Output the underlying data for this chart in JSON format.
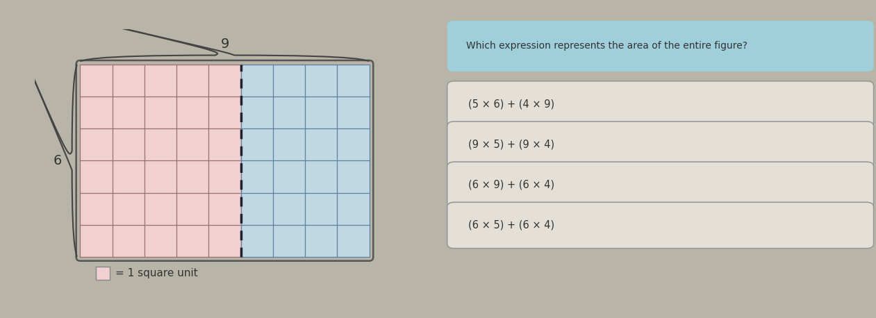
{
  "bg_color": "#b8b4a8",
  "question_header_bg": "#9ecfdb",
  "question_text": "Which expression represents the area of the entire figure?",
  "answer_choices": [
    "(5 × 6) + (4 × 9)",
    "(9 × 5) + (9 × 4)",
    "(6 × 9) + (6 × 4)",
    "(6 × 5) + (6 × 4)"
  ],
  "grid_rows": 6,
  "grid_cols_pink": 5,
  "grid_cols_blue": 4,
  "pink_color": "#f0d0d0",
  "blue_color": "#c0d8e4",
  "grid_line_color_pink": "#9a7070",
  "grid_line_color_blue": "#6080a0",
  "dashed_line_color": "#202030",
  "outer_border_color": "#555555",
  "box_border_color": "#999999",
  "text_color": "#333333",
  "answer_box_bg": "#e4e0d8",
  "label_6": "6",
  "label_9": "9",
  "legend_text": "= 1 square unit",
  "legend_square_color": "#f0d0d0",
  "legend_square_border": "#888888"
}
